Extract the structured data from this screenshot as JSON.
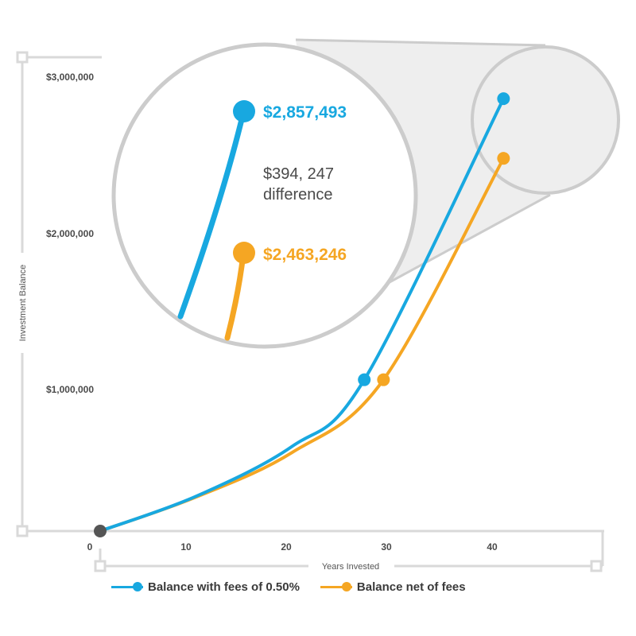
{
  "chart_data": {
    "type": "line",
    "xlabel": "Years Invested",
    "ylabel": "Investment Balance",
    "x_ticks": [
      "0",
      "10",
      "20",
      "30",
      "40"
    ],
    "y_ticks": [
      "$1,000,000",
      "$2,000,000",
      "$3,000,000"
    ],
    "xlim": [
      0,
      48
    ],
    "ylim": [
      0,
      3000000
    ],
    "series": [
      {
        "name": "Balance with fees of 0.50%",
        "color": "#18a8e0",
        "x": [
          0,
          10,
          20,
          27.5,
          42
        ],
        "values": [
          0,
          230000,
          560000,
          1000000,
          2857493
        ],
        "final_label": "$2,857,493"
      },
      {
        "name": "Balance net of fees",
        "color": "#f5a623",
        "x": [
          0,
          10,
          20,
          29.5,
          42
        ],
        "values": [
          0,
          225000,
          520000,
          1000000,
          2463246
        ],
        "final_label": "$2,463,246"
      }
    ],
    "annotation": {
      "difference_value": "$394, 247",
      "difference_label": "difference"
    },
    "start_point_color": "#555555"
  }
}
